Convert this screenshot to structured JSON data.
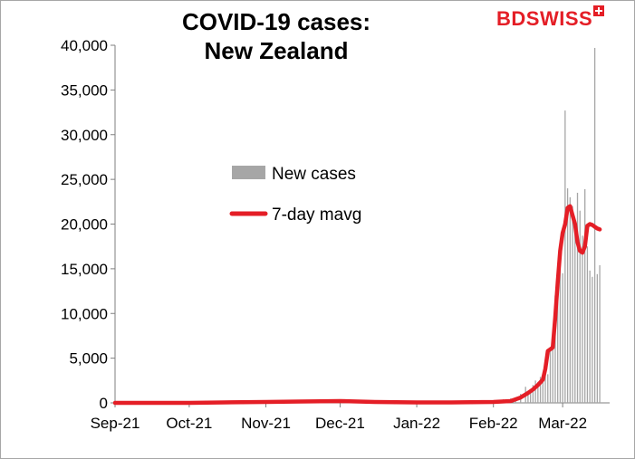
{
  "chart_data": {
    "type": "bar+line",
    "title_lines": [
      "COVID-19 cases:",
      "New Zealand"
    ],
    "brand": {
      "part1": "BD",
      "part2": "SWISS"
    },
    "xlabel": "",
    "ylabel": "",
    "ylim": [
      0,
      40000
    ],
    "y_ticks": [
      "0",
      "5,000",
      "10,000",
      "15,000",
      "20,000",
      "25,000",
      "30,000",
      "35,000",
      "40,000"
    ],
    "y_tick_values": [
      0,
      5000,
      10000,
      15000,
      20000,
      25000,
      30000,
      35000,
      40000
    ],
    "x_tick_labels": [
      "Sep-21",
      "Oct-21",
      "Nov-21",
      "Dec-21",
      "Jan-22",
      "Feb-22",
      "Mar-22"
    ],
    "x_tick_dates": [
      "2021-09-01",
      "2021-10-01",
      "2021-11-01",
      "2021-12-01",
      "2022-01-01",
      "2022-02-01",
      "2022-03-01"
    ],
    "x_range": [
      "2021-09-01",
      "2022-03-20"
    ],
    "grid": false,
    "legend_position": "center",
    "colors": {
      "bars": "#a6a6a6",
      "line": "#e41e26"
    },
    "series": [
      {
        "name": "New cases",
        "kind": "bar",
        "x": [
          "2022-02-01",
          "2022-02-05",
          "2022-02-08",
          "2022-02-10",
          "2022-02-12",
          "2022-02-14",
          "2022-02-15",
          "2022-02-16",
          "2022-02-17",
          "2022-02-18",
          "2022-02-19",
          "2022-02-20",
          "2022-02-21",
          "2022-02-22",
          "2022-02-23",
          "2022-02-24",
          "2022-02-25",
          "2022-02-26",
          "2022-02-27",
          "2022-02-28",
          "2022-03-01",
          "2022-03-02",
          "2022-03-03",
          "2022-03-04",
          "2022-03-05",
          "2022-03-06",
          "2022-03-07",
          "2022-03-08",
          "2022-03-09",
          "2022-03-10",
          "2022-03-11",
          "2022-03-12",
          "2022-03-13",
          "2022-03-14",
          "2022-03-15",
          "2022-03-16"
        ],
        "values": [
          300,
          400,
          500,
          600,
          1000,
          1800,
          1200,
          1500,
          2000,
          2500,
          2300,
          2900,
          2400,
          3500,
          3200,
          6100,
          6900,
          12000,
          13500,
          15000,
          14500,
          32700,
          24000,
          23000,
          22000,
          19000,
          23500,
          21500,
          18700,
          23900,
          17500,
          14800,
          14100,
          39700,
          14400,
          15400
        ]
      },
      {
        "name": "7-day mavg",
        "kind": "line",
        "x": [
          "2021-09-01",
          "2021-09-15",
          "2021-10-01",
          "2021-10-15",
          "2021-11-01",
          "2021-11-15",
          "2021-12-01",
          "2021-12-15",
          "2022-01-01",
          "2022-01-15",
          "2022-02-01",
          "2022-02-08",
          "2022-02-12",
          "2022-02-15",
          "2022-02-17",
          "2022-02-19",
          "2022-02-21",
          "2022-02-22",
          "2022-02-23",
          "2022-02-24",
          "2022-02-25",
          "2022-02-26",
          "2022-02-27",
          "2022-02-28",
          "2022-03-01",
          "2022-03-02",
          "2022-03-03",
          "2022-03-04",
          "2022-03-05",
          "2022-03-06",
          "2022-03-07",
          "2022-03-08",
          "2022-03-09",
          "2022-03-10",
          "2022-03-11",
          "2022-03-12",
          "2022-03-13",
          "2022-03-14",
          "2022-03-15",
          "2022-03-16"
        ],
        "values": [
          0,
          0,
          0,
          50,
          100,
          150,
          200,
          100,
          50,
          50,
          100,
          200,
          600,
          1100,
          1500,
          2000,
          2600,
          3800,
          5800,
          6000,
          6200,
          9500,
          13500,
          17000,
          19000,
          20000,
          21800,
          22000,
          21000,
          20000,
          18000,
          17000,
          16800,
          17500,
          19800,
          20000,
          19900,
          19700,
          19500,
          19400
        ]
      }
    ]
  }
}
